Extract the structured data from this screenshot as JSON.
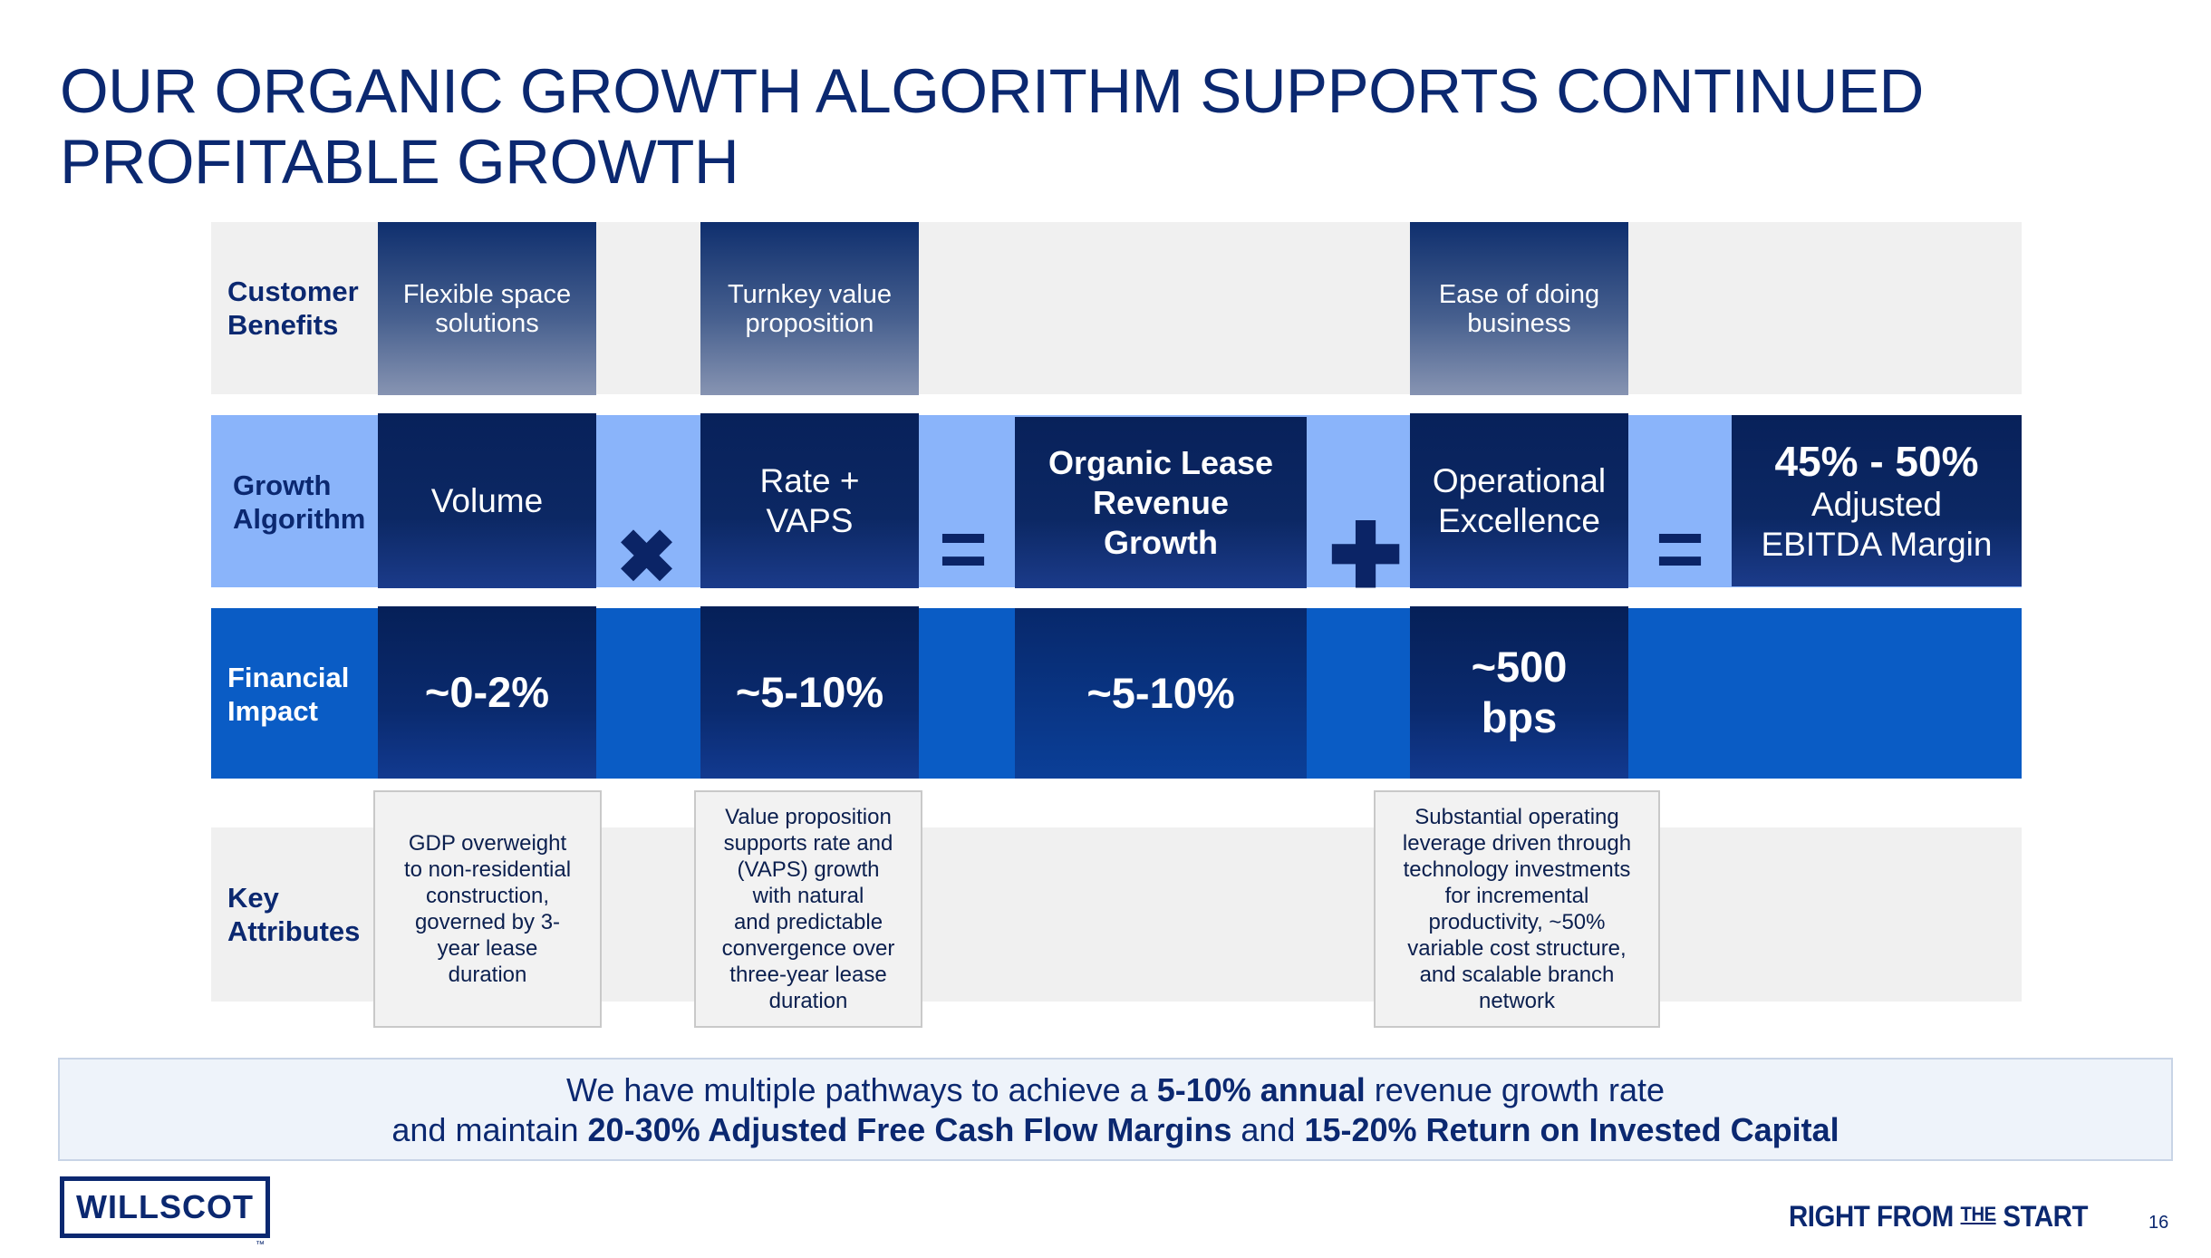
{
  "title": {
    "line1": "OUR ORGANIC GROWTH ALGORITHM SUPPORTS CONTINUED",
    "line2": "PROFITABLE GROWTH"
  },
  "rows": {
    "customer_benefits": {
      "line1": "Customer",
      "line2": "Benefits"
    },
    "growth_algorithm": {
      "line1": "Growth",
      "line2": "Algorithm"
    },
    "financial_impact": {
      "line1": "Financial",
      "line2": "Impact"
    },
    "key_attributes": {
      "line1": "Key",
      "line2": "Attributes"
    }
  },
  "benefits": {
    "flexible": {
      "line1": "Flexible space",
      "line2": "solutions"
    },
    "turnkey": {
      "line1": "Turnkey value",
      "line2": "proposition"
    },
    "ease": {
      "line1": "Ease of doing",
      "line2": "business"
    }
  },
  "algorithm": {
    "volume": "Volume",
    "rate": {
      "line1": "Rate +",
      "line2": "VAPS"
    },
    "organic": {
      "line1": "Organic Lease",
      "line2": "Revenue",
      "line3": "Growth"
    },
    "operational": {
      "line1": "Operational",
      "line2": "Excellence"
    },
    "margin": {
      "line1": "45% - 50%",
      "line2": "Adjusted",
      "line3": "EBITDA Margin"
    },
    "operators": {
      "times": "✖",
      "equals1": "=",
      "plus": "✚",
      "equals2": "="
    }
  },
  "financial": {
    "volume": "~0-2%",
    "rate": "~5-10%",
    "organic": "~5-10%",
    "operational": {
      "line1": "~500",
      "line2": "bps"
    }
  },
  "key_attributes": {
    "gdp": [
      "GDP overweight",
      "to non-residential",
      "construction,",
      "governed by 3-",
      "year lease",
      "duration"
    ],
    "value": [
      "Value proposition",
      "supports rate and",
      "(VAPS) growth",
      "with natural",
      "and predictable",
      "convergence over",
      "three-year lease",
      "duration"
    ],
    "leverage": [
      "Substantial operating",
      "leverage driven through",
      "technology investments",
      "for incremental",
      "productivity, ~50%",
      "variable cost structure,",
      "and scalable branch",
      "network"
    ]
  },
  "summary": {
    "l1_a": "We have multiple pathways to achieve a ",
    "l1_b": "5-10% annual",
    "l1_c": " revenue growth rate",
    "l2_a": "and maintain ",
    "l2_b": "20-30% Adjusted Free Cash Flow Margins",
    "l2_c": " and ",
    "l2_d": "15-20% Return on Invested Capital"
  },
  "footer": {
    "logo": "WILLSCOT",
    "tm": "™",
    "tagline": {
      "a": "RIGHT FROM ",
      "b": "THE",
      "c": " START"
    },
    "page_number": "16"
  }
}
